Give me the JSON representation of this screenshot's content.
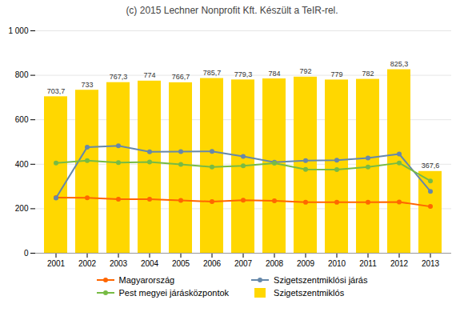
{
  "chart_data": {
    "type": "bar",
    "title": "(c) 2015 Lechner Nonprofit Kft. Készült a TeIR-rel.",
    "categories": [
      "2001",
      "2002",
      "2003",
      "2004",
      "2005",
      "2006",
      "2007",
      "2008",
      "2009",
      "2010",
      "2011",
      "2012",
      "2013"
    ],
    "series": [
      {
        "name": "Magyarország",
        "type": "line",
        "color": "#FF6600",
        "marker": "o",
        "values": [
          250,
          249,
          243,
          243,
          237,
          232,
          238,
          236,
          229,
          229,
          229,
          230,
          210
        ]
      },
      {
        "name": "Szigetszentmiklósi járás",
        "type": "line",
        "color": "#6688AA",
        "marker": "o",
        "values": [
          248,
          477,
          483,
          456,
          457,
          458,
          435,
          409,
          416,
          418,
          428,
          446,
          278
        ]
      },
      {
        "name": "Pest megyei járásközpontok",
        "type": "line",
        "color": "#77BB44",
        "marker": "o",
        "values": [
          406,
          416,
          407,
          410,
          399,
          388,
          393,
          405,
          377,
          376,
          388,
          406,
          325
        ]
      },
      {
        "name": "Szigetszentmiklós",
        "type": "bar",
        "color": "#FFD700",
        "data_labels": true,
        "values": [
          703.7,
          733,
          767.3,
          774,
          766.7,
          785.7,
          779.3,
          784,
          792,
          779,
          782,
          825.3,
          367.6
        ],
        "value_labels": [
          "703,7",
          "733",
          "767,3",
          "774",
          "766,7",
          "785,7",
          "779,3",
          "784",
          "792",
          "779",
          "782",
          "825,3",
          "367,6"
        ]
      }
    ],
    "ylim": [
      0,
      1000
    ],
    "yticks": [
      0,
      200,
      400,
      600,
      800,
      {
        "value": 1000,
        "label": "1 000"
      }
    ],
    "grid": true,
    "legend": "bottom"
  }
}
